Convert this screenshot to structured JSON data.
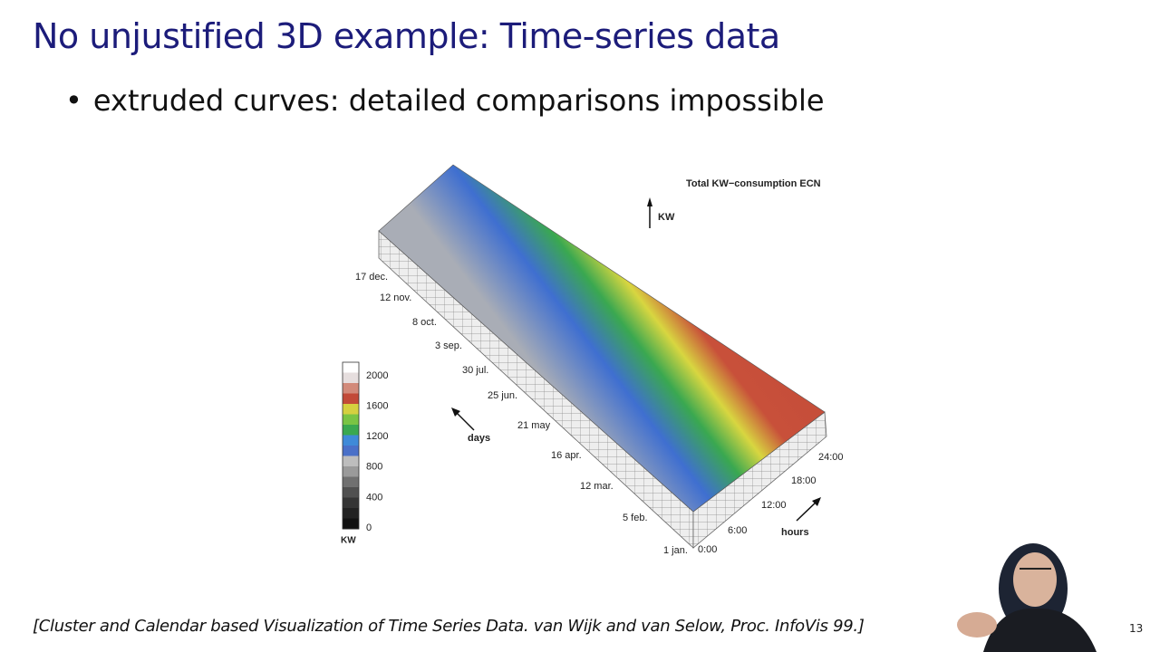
{
  "header": {
    "title": "No unjustified 3D example: Time-series data"
  },
  "bullets": [
    "extruded curves: detailed comparisons impossible"
  ],
  "figure": {
    "title": "Total KW−consumption ECN",
    "kw_arrow_label": "KW",
    "day_labels": [
      "17 dec.",
      "12 nov.",
      "8 oct.",
      "3 sep.",
      "30 jul.",
      "25 jun.",
      "21 may",
      "16 apr.",
      "12 mar.",
      "5 feb.",
      "1 jan."
    ],
    "days_label": "days",
    "hour_labels": [
      "0:00",
      "6:00",
      "12:00",
      "18:00",
      "24:00"
    ],
    "hours_label": "hours",
    "legend_labels": [
      "2000",
      "1600",
      "1200",
      "800",
      "400",
      "0"
    ],
    "legend_unit": "KW"
  },
  "citation": "[Cluster and Calendar based Visualization of Time Series Data. van Wijk and van Selow, Proc. InfoVis 99.]",
  "page_number": "13"
}
